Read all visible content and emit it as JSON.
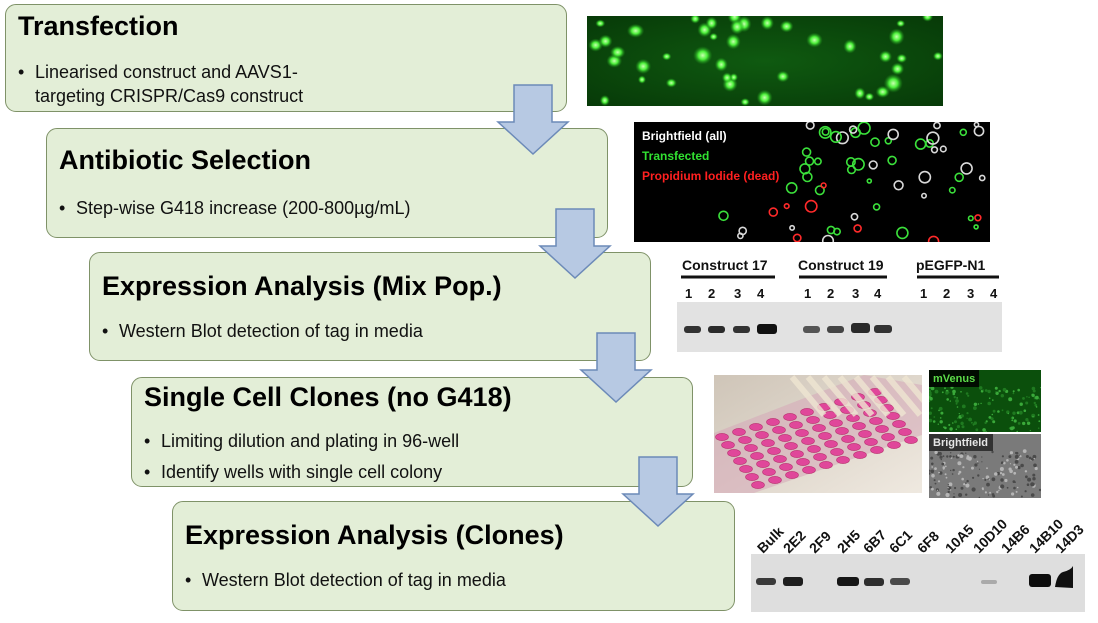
{
  "steps": [
    {
      "title": "Transfection",
      "bullets": [
        "Linearised construct and AAVS1-",
        "targeting CRISPR/Cas9 construct"
      ]
    },
    {
      "title": "Antibiotic Selection",
      "bullets": [
        "Step-wise G418 increase (200-800µg/mL)"
      ]
    },
    {
      "title": "Expression Analysis (Mix Pop.)",
      "bullets": [
        "Western Blot detection of tag in media"
      ]
    },
    {
      "title": "Single Cell Clones (no G418)",
      "bullets": [
        "Limiting dilution and plating in 96-well",
        "Identify wells with single cell colony"
      ]
    },
    {
      "title": "Expression Analysis (Clones)",
      "bullets": [
        "Western Blot detection of tag in media"
      ]
    }
  ],
  "micrograph": {
    "legend": [
      "Brightfield (all)",
      "Transfected",
      "Propidium Iodide (dead)"
    ],
    "legend_colors": [
      "#ffffff",
      "#31e031",
      "#ff2020"
    ]
  },
  "blot_mix": {
    "groups": [
      "Construct 17",
      "Construct 19",
      "pEGFP-N1"
    ],
    "lanes": [
      "1",
      "2",
      "3",
      "4"
    ]
  },
  "clone_images": {
    "labels": [
      "mVenus",
      "Brightfield"
    ],
    "label_colors": [
      "#5ddc4a",
      "#e6e6e6"
    ]
  },
  "blot_clones": {
    "labels": [
      "Bulk",
      "2E2",
      "2F9",
      "2H5",
      "6B7",
      "6C1",
      "6F8",
      "10A5",
      "10D10",
      "14B6",
      "14B10",
      "14D3"
    ]
  },
  "colors": {
    "box_fill": "#e3eed7",
    "box_border": "#7f9268",
    "arrow_fill": "#b7c9e3",
    "arrow_stroke": "#6c8ab8"
  }
}
